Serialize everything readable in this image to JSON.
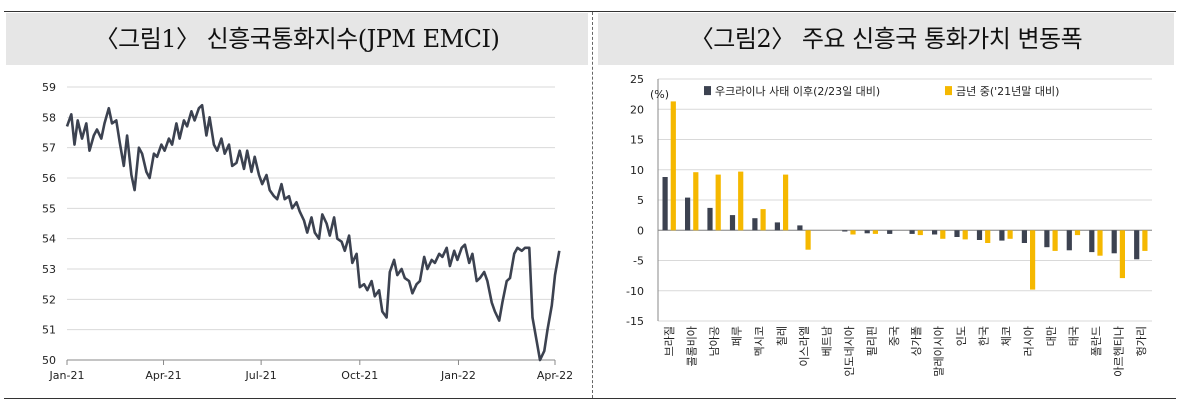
{
  "figure1": {
    "title": "〈그림1〉 신흥국통화지수(JPM EMCI)",
    "chart_data": {
      "type": "line",
      "title": "〈그림1〉 신흥국통화지수(JPM EMCI)",
      "xlabel": "",
      "ylabel": "",
      "x_ticks": [
        "Jan-21",
        "Apr-21",
        "Jul-21",
        "Oct-21",
        "Jan-22",
        "Apr-22"
      ],
      "y_ticks": [
        50,
        51,
        52,
        53,
        54,
        55,
        56,
        57,
        58,
        59
      ],
      "ylim": [
        50,
        59
      ],
      "grid": "horizontal",
      "series": [
        {
          "color": "#3c4250",
          "x": [
            "2021-01-01",
            "2021-01-05",
            "2021-01-08",
            "2021-01-11",
            "2021-01-15",
            "2021-01-19",
            "2021-01-22",
            "2021-01-26",
            "2021-01-29",
            "2021-02-02",
            "2021-02-05",
            "2021-02-09",
            "2021-02-12",
            "2021-02-16",
            "2021-02-19",
            "2021-02-23",
            "2021-02-26",
            "2021-03-02",
            "2021-03-05",
            "2021-03-09",
            "2021-03-12",
            "2021-03-16",
            "2021-03-19",
            "2021-03-23",
            "2021-03-26",
            "2021-03-30",
            "2021-04-02",
            "2021-04-06",
            "2021-04-09",
            "2021-04-13",
            "2021-04-16",
            "2021-04-20",
            "2021-04-23",
            "2021-04-27",
            "2021-04-30",
            "2021-05-04",
            "2021-05-07",
            "2021-05-11",
            "2021-05-14",
            "2021-05-18",
            "2021-05-21",
            "2021-05-25",
            "2021-05-28",
            "2021-06-01",
            "2021-06-04",
            "2021-06-08",
            "2021-06-11",
            "2021-06-15",
            "2021-06-18",
            "2021-06-22",
            "2021-06-25",
            "2021-06-29",
            "2021-07-02",
            "2021-07-06",
            "2021-07-09",
            "2021-07-13",
            "2021-07-16",
            "2021-07-20",
            "2021-07-23",
            "2021-07-27",
            "2021-07-30",
            "2021-08-03",
            "2021-08-06",
            "2021-08-10",
            "2021-08-13",
            "2021-08-17",
            "2021-08-20",
            "2021-08-24",
            "2021-08-27",
            "2021-08-31",
            "2021-09-03",
            "2021-09-07",
            "2021-09-10",
            "2021-09-14",
            "2021-09-17",
            "2021-09-21",
            "2021-09-24",
            "2021-09-28",
            "2021-10-01",
            "2021-10-05",
            "2021-10-08",
            "2021-10-12",
            "2021-10-15",
            "2021-10-19",
            "2021-10-22",
            "2021-10-26",
            "2021-10-29",
            "2021-11-02",
            "2021-11-05",
            "2021-11-09",
            "2021-11-12",
            "2021-11-16",
            "2021-11-19",
            "2021-11-23",
            "2021-11-26",
            "2021-11-30",
            "2021-12-03",
            "2021-12-07",
            "2021-12-10",
            "2021-12-14",
            "2021-12-17",
            "2021-12-21",
            "2021-12-24",
            "2021-12-28",
            "2021-12-31",
            "2022-01-04",
            "2022-01-07",
            "2022-01-11",
            "2022-01-14",
            "2022-01-18",
            "2022-01-21",
            "2022-01-25",
            "2022-01-28",
            "2022-02-01",
            "2022-02-04",
            "2022-02-08",
            "2022-02-11",
            "2022-02-15",
            "2022-02-18",
            "2022-02-22",
            "2022-02-25",
            "2022-03-01",
            "2022-03-04",
            "2022-03-08",
            "2022-03-11",
            "2022-03-15",
            "2022-03-18",
            "2022-03-22",
            "2022-03-25",
            "2022-03-29",
            "2022-04-01",
            "2022-04-05"
          ],
          "values": [
            57.7,
            58.1,
            57.1,
            57.9,
            57.3,
            57.8,
            56.9,
            57.4,
            57.6,
            57.3,
            57.8,
            58.3,
            57.8,
            57.9,
            57.2,
            56.4,
            57.4,
            56.1,
            55.6,
            57.0,
            56.8,
            56.2,
            56.0,
            56.8,
            56.7,
            57.1,
            56.9,
            57.3,
            57.1,
            57.8,
            57.3,
            57.9,
            57.7,
            58.2,
            57.9,
            58.3,
            58.4,
            57.4,
            58.0,
            57.1,
            56.9,
            57.3,
            56.8,
            57.1,
            56.4,
            56.5,
            56.9,
            56.3,
            56.9,
            56.2,
            56.7,
            56.1,
            55.8,
            56.1,
            55.6,
            55.4,
            55.3,
            55.8,
            55.3,
            55.4,
            55.0,
            55.2,
            54.9,
            54.6,
            54.2,
            54.7,
            54.2,
            54.0,
            54.8,
            54.5,
            54.1,
            54.7,
            54.0,
            53.9,
            53.6,
            54.1,
            53.2,
            53.5,
            52.4,
            52.5,
            52.3,
            52.6,
            52.1,
            52.3,
            51.6,
            51.4,
            52.9,
            53.3,
            52.8,
            53.0,
            52.7,
            52.6,
            52.2,
            52.5,
            52.6,
            53.4,
            53.0,
            53.3,
            53.2,
            53.5,
            53.4,
            53.7,
            53.1,
            53.6,
            53.3,
            53.7,
            53.8,
            53.2,
            53.5,
            52.6,
            52.7,
            52.9,
            52.6,
            51.9,
            51.6,
            51.3,
            51.9,
            52.6,
            52.7,
            53.5,
            53.7,
            53.6,
            53.7,
            53.7,
            51.4,
            50.6,
            50.0,
            50.3,
            51.0,
            51.8,
            52.8,
            53.6
          ]
        }
      ]
    }
  },
  "figure2": {
    "title": "〈그림2〉 주요 신흥국 통화가치 변동폭",
    "chart_data": {
      "type": "bar",
      "title": "〈그림2〉 주요 신흥국 통화가치 변동폭",
      "ylabel": "(%)",
      "xlabel": "",
      "ylim": [
        -15,
        25
      ],
      "y_ticks": [
        25,
        20,
        15,
        10,
        5,
        0,
        -5,
        -10,
        -15
      ],
      "grid": "horizontal",
      "legend_position": "top",
      "categories": [
        "브라질",
        "콜롬비아",
        "남아공",
        "페루",
        "멕시코",
        "칠레",
        "이스라엘",
        "베트남",
        "인도네시아",
        "필리핀",
        "중국",
        "싱가폴",
        "말레이시아",
        "인도",
        "한국",
        "체코",
        "러시아",
        "대만",
        "태국",
        "폴란드",
        "아르헨티나",
        "헝가리"
      ],
      "series": [
        {
          "name": "우크라이나 사태 이후(2/23일 대비)",
          "color": "#3c4250",
          "values": [
            8.8,
            5.4,
            3.7,
            2.5,
            2.0,
            1.3,
            0.8,
            0.0,
            -0.2,
            -0.5,
            -0.6,
            -0.6,
            -0.7,
            -1.1,
            -1.6,
            -1.7,
            -2.1,
            -2.8,
            -3.3,
            -3.6,
            -3.8,
            -4.8
          ]
        },
        {
          "name": "금년 중('21년말 대비)",
          "color": "#f5b800",
          "values": [
            21.3,
            9.6,
            9.2,
            9.7,
            3.5,
            9.2,
            -3.2,
            0.0,
            -0.7,
            -0.6,
            0.0,
            -0.8,
            -1.4,
            -1.5,
            -2.1,
            -1.4,
            -9.8,
            -3.4,
            -0.8,
            -4.2,
            -7.9,
            -3.4
          ]
        }
      ]
    }
  }
}
